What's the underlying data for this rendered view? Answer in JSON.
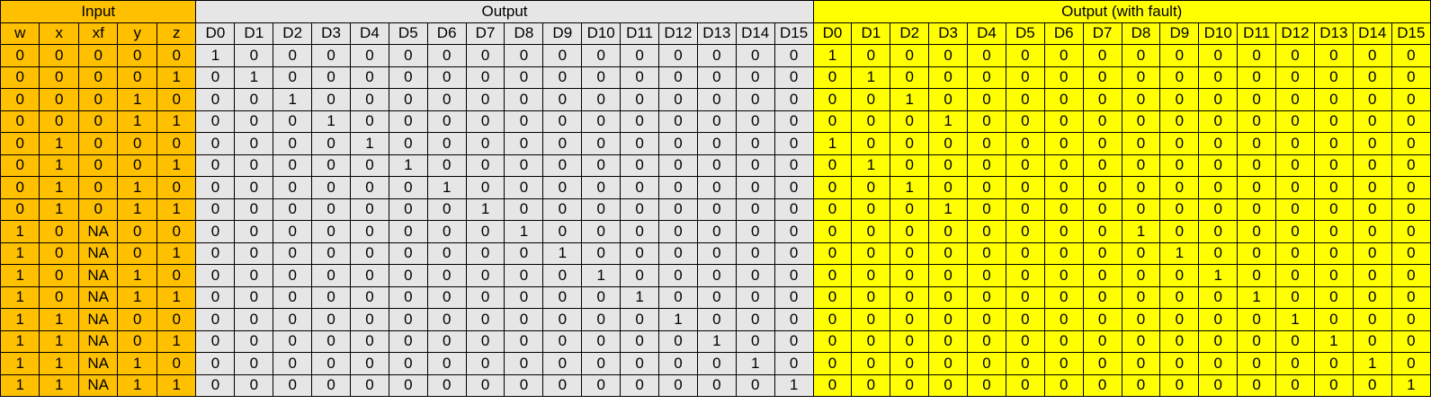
{
  "groups": {
    "input": "Input",
    "output": "Output",
    "fault": "Output (with fault)"
  },
  "headers": {
    "input": [
      "w",
      "x",
      "xf",
      "y",
      "z"
    ],
    "output": [
      "D0",
      "D1",
      "D2",
      "D3",
      "D4",
      "D5",
      "D6",
      "D7",
      "D8",
      "D9",
      "D10",
      "D11",
      "D12",
      "D13",
      "D14",
      "D15"
    ],
    "fault": [
      "D0",
      "D1",
      "D2",
      "D3",
      "D4",
      "D5",
      "D6",
      "D7",
      "D8",
      "D9",
      "D10",
      "D11",
      "D12",
      "D13",
      "D14",
      "D15"
    ]
  },
  "rows": [
    {
      "input": [
        "0",
        "0",
        "0",
        "0",
        "0"
      ],
      "output": [
        "1",
        "0",
        "0",
        "0",
        "0",
        "0",
        "0",
        "0",
        "0",
        "0",
        "0",
        "0",
        "0",
        "0",
        "0",
        "0"
      ],
      "fault": [
        "1",
        "0",
        "0",
        "0",
        "0",
        "0",
        "0",
        "0",
        "0",
        "0",
        "0",
        "0",
        "0",
        "0",
        "0",
        "0"
      ]
    },
    {
      "input": [
        "0",
        "0",
        "0",
        "0",
        "1"
      ],
      "output": [
        "0",
        "1",
        "0",
        "0",
        "0",
        "0",
        "0",
        "0",
        "0",
        "0",
        "0",
        "0",
        "0",
        "0",
        "0",
        "0"
      ],
      "fault": [
        "0",
        "1",
        "0",
        "0",
        "0",
        "0",
        "0",
        "0",
        "0",
        "0",
        "0",
        "0",
        "0",
        "0",
        "0",
        "0"
      ]
    },
    {
      "input": [
        "0",
        "0",
        "0",
        "1",
        "0"
      ],
      "output": [
        "0",
        "0",
        "1",
        "0",
        "0",
        "0",
        "0",
        "0",
        "0",
        "0",
        "0",
        "0",
        "0",
        "0",
        "0",
        "0"
      ],
      "fault": [
        "0",
        "0",
        "1",
        "0",
        "0",
        "0",
        "0",
        "0",
        "0",
        "0",
        "0",
        "0",
        "0",
        "0",
        "0",
        "0"
      ]
    },
    {
      "input": [
        "0",
        "0",
        "0",
        "1",
        "1"
      ],
      "output": [
        "0",
        "0",
        "0",
        "1",
        "0",
        "0",
        "0",
        "0",
        "0",
        "0",
        "0",
        "0",
        "0",
        "0",
        "0",
        "0"
      ],
      "fault": [
        "0",
        "0",
        "0",
        "1",
        "0",
        "0",
        "0",
        "0",
        "0",
        "0",
        "0",
        "0",
        "0",
        "0",
        "0",
        "0"
      ]
    },
    {
      "input": [
        "0",
        "1",
        "0",
        "0",
        "0"
      ],
      "output": [
        "0",
        "0",
        "0",
        "0",
        "1",
        "0",
        "0",
        "0",
        "0",
        "0",
        "0",
        "0",
        "0",
        "0",
        "0",
        "0"
      ],
      "fault": [
        "1",
        "0",
        "0",
        "0",
        "0",
        "0",
        "0",
        "0",
        "0",
        "0",
        "0",
        "0",
        "0",
        "0",
        "0",
        "0"
      ]
    },
    {
      "input": [
        "0",
        "1",
        "0",
        "0",
        "1"
      ],
      "output": [
        "0",
        "0",
        "0",
        "0",
        "0",
        "1",
        "0",
        "0",
        "0",
        "0",
        "0",
        "0",
        "0",
        "0",
        "0",
        "0"
      ],
      "fault": [
        "0",
        "1",
        "0",
        "0",
        "0",
        "0",
        "0",
        "0",
        "0",
        "0",
        "0",
        "0",
        "0",
        "0",
        "0",
        "0"
      ]
    },
    {
      "input": [
        "0",
        "1",
        "0",
        "1",
        "0"
      ],
      "output": [
        "0",
        "0",
        "0",
        "0",
        "0",
        "0",
        "1",
        "0",
        "0",
        "0",
        "0",
        "0",
        "0",
        "0",
        "0",
        "0"
      ],
      "fault": [
        "0",
        "0",
        "1",
        "0",
        "0",
        "0",
        "0",
        "0",
        "0",
        "0",
        "0",
        "0",
        "0",
        "0",
        "0",
        "0"
      ]
    },
    {
      "input": [
        "0",
        "1",
        "0",
        "1",
        "1"
      ],
      "output": [
        "0",
        "0",
        "0",
        "0",
        "0",
        "0",
        "0",
        "1",
        "0",
        "0",
        "0",
        "0",
        "0",
        "0",
        "0",
        "0"
      ],
      "fault": [
        "0",
        "0",
        "0",
        "1",
        "0",
        "0",
        "0",
        "0",
        "0",
        "0",
        "0",
        "0",
        "0",
        "0",
        "0",
        "0"
      ]
    },
    {
      "input": [
        "1",
        "0",
        "NA",
        "0",
        "0"
      ],
      "output": [
        "0",
        "0",
        "0",
        "0",
        "0",
        "0",
        "0",
        "0",
        "1",
        "0",
        "0",
        "0",
        "0",
        "0",
        "0",
        "0"
      ],
      "fault": [
        "0",
        "0",
        "0",
        "0",
        "0",
        "0",
        "0",
        "0",
        "1",
        "0",
        "0",
        "0",
        "0",
        "0",
        "0",
        "0"
      ]
    },
    {
      "input": [
        "1",
        "0",
        "NA",
        "0",
        "1"
      ],
      "output": [
        "0",
        "0",
        "0",
        "0",
        "0",
        "0",
        "0",
        "0",
        "0",
        "1",
        "0",
        "0",
        "0",
        "0",
        "0",
        "0"
      ],
      "fault": [
        "0",
        "0",
        "0",
        "0",
        "0",
        "0",
        "0",
        "0",
        "0",
        "1",
        "0",
        "0",
        "0",
        "0",
        "0",
        "0"
      ]
    },
    {
      "input": [
        "1",
        "0",
        "NA",
        "1",
        "0"
      ],
      "output": [
        "0",
        "0",
        "0",
        "0",
        "0",
        "0",
        "0",
        "0",
        "0",
        "0",
        "1",
        "0",
        "0",
        "0",
        "0",
        "0"
      ],
      "fault": [
        "0",
        "0",
        "0",
        "0",
        "0",
        "0",
        "0",
        "0",
        "0",
        "0",
        "1",
        "0",
        "0",
        "0",
        "0",
        "0"
      ]
    },
    {
      "input": [
        "1",
        "0",
        "NA",
        "1",
        "1"
      ],
      "output": [
        "0",
        "0",
        "0",
        "0",
        "0",
        "0",
        "0",
        "0",
        "0",
        "0",
        "0",
        "1",
        "0",
        "0",
        "0",
        "0"
      ],
      "fault": [
        "0",
        "0",
        "0",
        "0",
        "0",
        "0",
        "0",
        "0",
        "0",
        "0",
        "0",
        "1",
        "0",
        "0",
        "0",
        "0"
      ]
    },
    {
      "input": [
        "1",
        "1",
        "NA",
        "0",
        "0"
      ],
      "output": [
        "0",
        "0",
        "0",
        "0",
        "0",
        "0",
        "0",
        "0",
        "0",
        "0",
        "0",
        "0",
        "1",
        "0",
        "0",
        "0"
      ],
      "fault": [
        "0",
        "0",
        "0",
        "0",
        "0",
        "0",
        "0",
        "0",
        "0",
        "0",
        "0",
        "0",
        "1",
        "0",
        "0",
        "0"
      ]
    },
    {
      "input": [
        "1",
        "1",
        "NA",
        "0",
        "1"
      ],
      "output": [
        "0",
        "0",
        "0",
        "0",
        "0",
        "0",
        "0",
        "0",
        "0",
        "0",
        "0",
        "0",
        "0",
        "1",
        "0",
        "0"
      ],
      "fault": [
        "0",
        "0",
        "0",
        "0",
        "0",
        "0",
        "0",
        "0",
        "0",
        "0",
        "0",
        "0",
        "0",
        "1",
        "0",
        "0"
      ]
    },
    {
      "input": [
        "1",
        "1",
        "NA",
        "1",
        "0"
      ],
      "output": [
        "0",
        "0",
        "0",
        "0",
        "0",
        "0",
        "0",
        "0",
        "0",
        "0",
        "0",
        "0",
        "0",
        "0",
        "1",
        "0"
      ],
      "fault": [
        "0",
        "0",
        "0",
        "0",
        "0",
        "0",
        "0",
        "0",
        "0",
        "0",
        "0",
        "0",
        "0",
        "0",
        "1",
        "0"
      ]
    },
    {
      "input": [
        "1",
        "1",
        "NA",
        "1",
        "1"
      ],
      "output": [
        "0",
        "0",
        "0",
        "0",
        "0",
        "0",
        "0",
        "0",
        "0",
        "0",
        "0",
        "0",
        "0",
        "0",
        "0",
        "1"
      ],
      "fault": [
        "0",
        "0",
        "0",
        "0",
        "0",
        "0",
        "0",
        "0",
        "0",
        "0",
        "0",
        "0",
        "0",
        "0",
        "0",
        "1"
      ]
    }
  ],
  "colors": {
    "input_fill": "#ffc000",
    "output_fill": "#e6e6e6",
    "fault_fill": "#ffff00",
    "border": "#000000"
  }
}
